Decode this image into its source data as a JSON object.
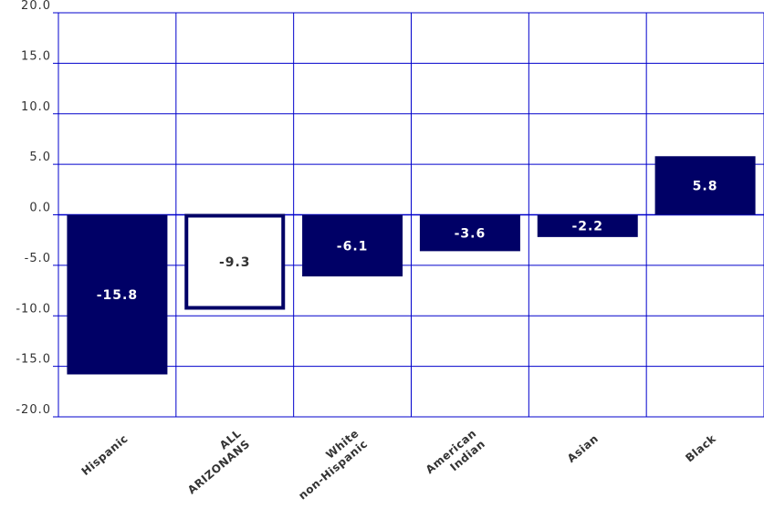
{
  "chart_data": {
    "type": "bar",
    "categories": [
      [
        "Hispanic"
      ],
      [
        "ALL",
        "ARIZONANS"
      ],
      [
        "White",
        "non-Hispanic"
      ],
      [
        "American",
        "Indian"
      ],
      [
        "Asian"
      ],
      [
        "Black"
      ]
    ],
    "values": [
      -15.8,
      -9.3,
      -6.1,
      -3.6,
      -2.2,
      5.8
    ],
    "value_labels": [
      "-15.8",
      "-9.3",
      "-6.1",
      "-3.6",
      "-2.2",
      "5.8"
    ],
    "highlight_index": 1,
    "ylim": [
      -20,
      20
    ],
    "yticks": [
      "-20.0",
      "-15.0",
      "-10.0",
      "-5.0",
      "0.0",
      "5.0",
      "10.0",
      "15.0",
      "20.0"
    ],
    "grid": true,
    "colors": {
      "bar": "#000066",
      "highlight_fill": "#ffffff",
      "highlight_border": "#000066",
      "grid": "#0000cc",
      "bar_label": "#ffffff",
      "highlight_label": "#333333"
    }
  }
}
